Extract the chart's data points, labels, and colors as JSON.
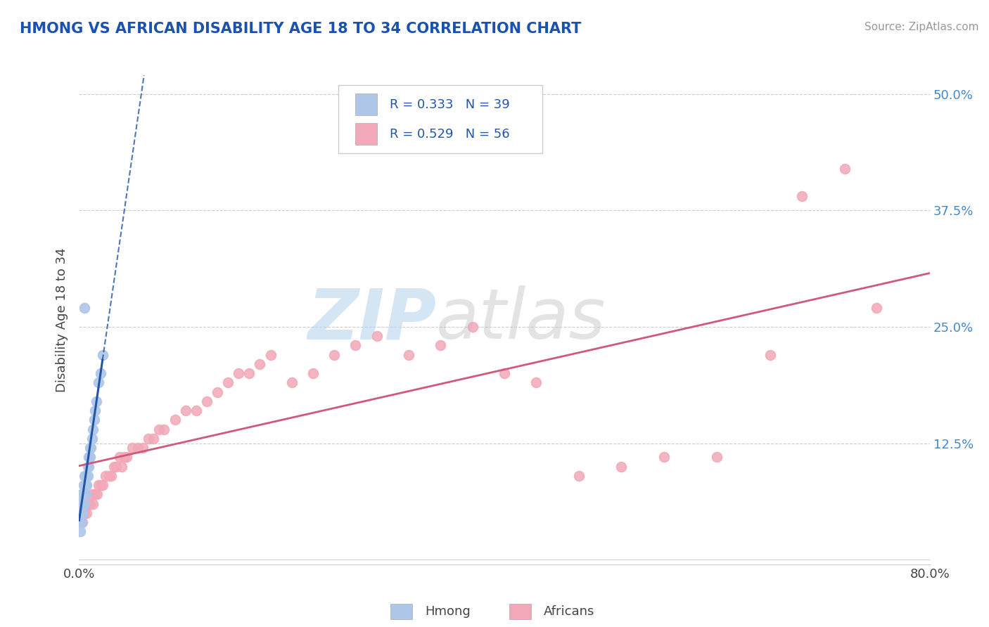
{
  "title": "HMONG VS AFRICAN DISABILITY AGE 18 TO 34 CORRELATION CHART",
  "source_text": "Source: ZipAtlas.com",
  "ylabel": "Disability Age 18 to 34",
  "watermark_zip": "ZIP",
  "watermark_atlas": "atlas",
  "legend_r_hmong": "R = 0.333",
  "legend_n_hmong": "N = 39",
  "legend_r_african": "R = 0.529",
  "legend_n_african": "N = 56",
  "hmong_color": "#aec6e8",
  "african_color": "#f2a8b8",
  "hmong_line_color": "#2255aa",
  "african_line_color": "#d05878",
  "title_color": "#1a52b0",
  "tick_color": "#4488cc",
  "label_color": "#444444",
  "legend_text_color": "#2255aa",
  "source_color": "#999999",
  "background_color": "#ffffff",
  "grid_color": "#cccccc",
  "xlim": [
    0.0,
    0.8
  ],
  "ylim": [
    -0.005,
    0.52
  ],
  "x_ticks": [
    0.0,
    0.8
  ],
  "x_tick_labels": [
    "0.0%",
    "80.0%"
  ],
  "y_ticks": [
    0.0,
    0.125,
    0.25,
    0.375,
    0.5
  ],
  "y_tick_labels": [
    "",
    "12.5%",
    "25.0%",
    "37.5%",
    "50.0%"
  ],
  "hmong_x": [
    0.001,
    0.001,
    0.001,
    0.001,
    0.002,
    0.002,
    0.002,
    0.002,
    0.003,
    0.003,
    0.003,
    0.004,
    0.004,
    0.004,
    0.005,
    0.005,
    0.005,
    0.005,
    0.006,
    0.006,
    0.006,
    0.007,
    0.007,
    0.008,
    0.008,
    0.009,
    0.009,
    0.01,
    0.01,
    0.011,
    0.012,
    0.013,
    0.014,
    0.015,
    0.016,
    0.018,
    0.02,
    0.022,
    0.005
  ],
  "hmong_y": [
    0.03,
    0.04,
    0.05,
    0.06,
    0.04,
    0.05,
    0.06,
    0.07,
    0.05,
    0.06,
    0.07,
    0.06,
    0.07,
    0.08,
    0.06,
    0.07,
    0.08,
    0.09,
    0.07,
    0.08,
    0.09,
    0.08,
    0.09,
    0.09,
    0.1,
    0.1,
    0.11,
    0.11,
    0.12,
    0.12,
    0.13,
    0.14,
    0.15,
    0.16,
    0.17,
    0.19,
    0.2,
    0.22,
    0.27
  ],
  "african_x": [
    0.003,
    0.005,
    0.007,
    0.008,
    0.01,
    0.012,
    0.013,
    0.015,
    0.017,
    0.018,
    0.02,
    0.022,
    0.025,
    0.028,
    0.03,
    0.033,
    0.035,
    0.038,
    0.04,
    0.043,
    0.045,
    0.05,
    0.055,
    0.06,
    0.065,
    0.07,
    0.075,
    0.08,
    0.09,
    0.1,
    0.11,
    0.12,
    0.13,
    0.14,
    0.15,
    0.16,
    0.17,
    0.18,
    0.2,
    0.22,
    0.24,
    0.26,
    0.28,
    0.31,
    0.34,
    0.37,
    0.4,
    0.43,
    0.47,
    0.51,
    0.55,
    0.6,
    0.65,
    0.68,
    0.72,
    0.75
  ],
  "african_y": [
    0.04,
    0.05,
    0.05,
    0.06,
    0.06,
    0.07,
    0.06,
    0.07,
    0.07,
    0.08,
    0.08,
    0.08,
    0.09,
    0.09,
    0.09,
    0.1,
    0.1,
    0.11,
    0.1,
    0.11,
    0.11,
    0.12,
    0.12,
    0.12,
    0.13,
    0.13,
    0.14,
    0.14,
    0.15,
    0.16,
    0.16,
    0.17,
    0.18,
    0.19,
    0.2,
    0.2,
    0.21,
    0.22,
    0.19,
    0.2,
    0.22,
    0.23,
    0.24,
    0.22,
    0.23,
    0.25,
    0.2,
    0.19,
    0.09,
    0.1,
    0.11,
    0.11,
    0.22,
    0.39,
    0.42,
    0.27
  ],
  "fig_width": 14.06,
  "fig_height": 8.92
}
